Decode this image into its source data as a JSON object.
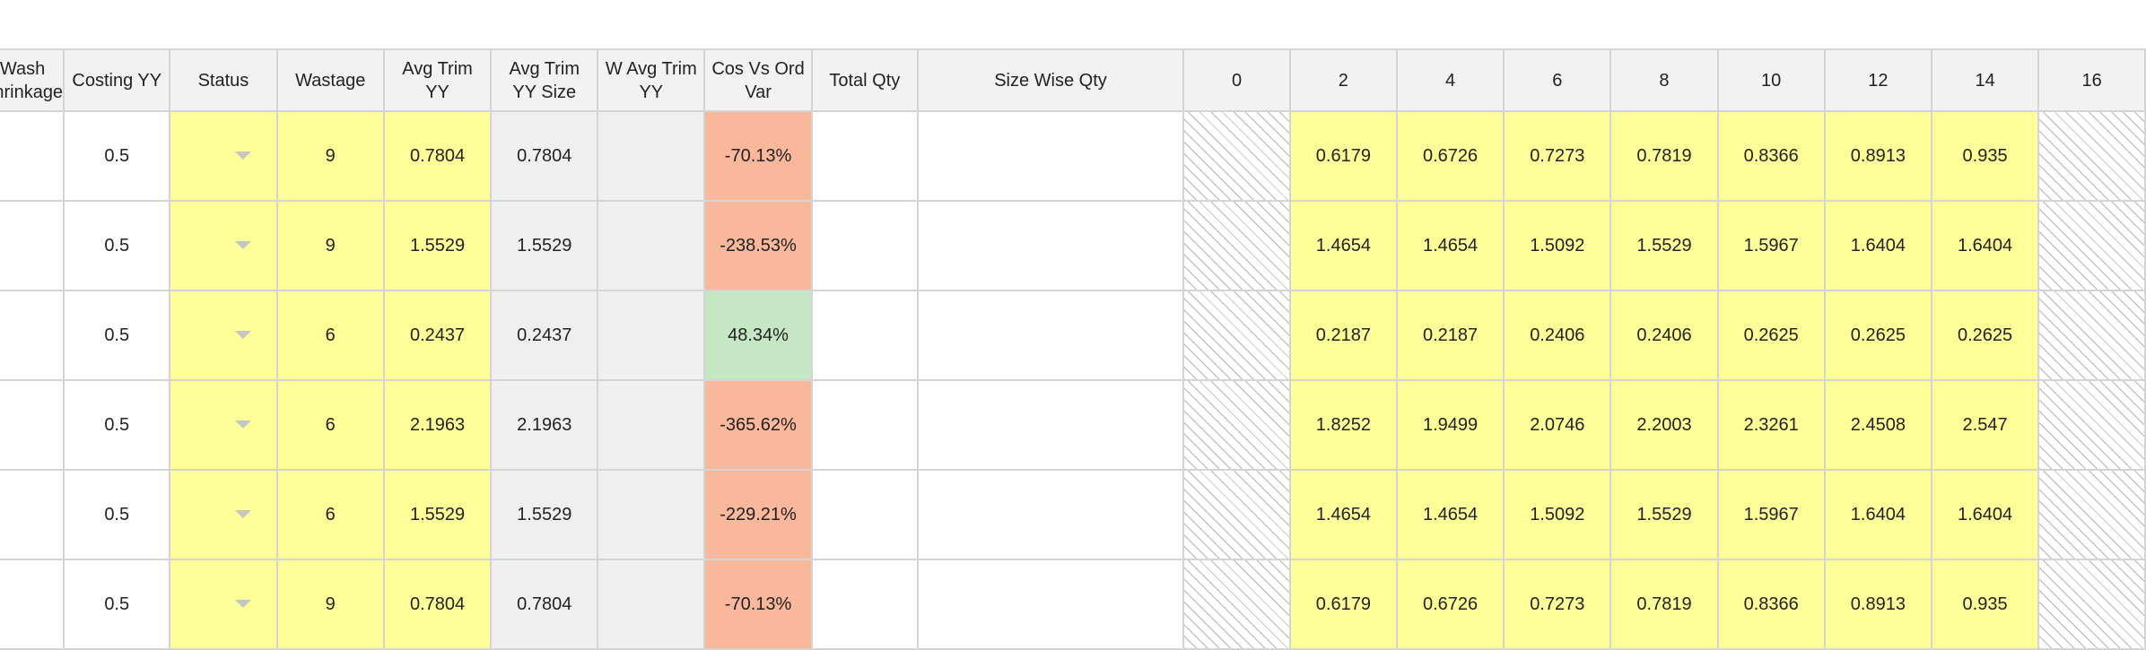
{
  "columns": [
    {
      "key": "wash_shrinkage",
      "line1": "Wash",
      "line2": "Shrinkage"
    },
    {
      "key": "costing_yy",
      "line1": "Costing YY",
      "line2": ""
    },
    {
      "key": "status",
      "line1": "Status",
      "line2": ""
    },
    {
      "key": "wastage",
      "line1": "Wastage",
      "line2": ""
    },
    {
      "key": "avg_trim_yy",
      "line1": "Avg Trim",
      "line2": "YY"
    },
    {
      "key": "avg_trim_yy_size",
      "line1": "Avg Trim",
      "line2": "YY Size"
    },
    {
      "key": "w_avg_trim_yy",
      "line1": "W Avg Trim",
      "line2": "YY"
    },
    {
      "key": "cos_vs_ord_var",
      "line1": "Cos Vs Ord",
      "line2": "Var"
    },
    {
      "key": "total_qty",
      "line1": "Total Qty",
      "line2": ""
    },
    {
      "key": "size_wise_qty",
      "line1": "Size Wise Qty",
      "line2": ""
    },
    {
      "key": "s0",
      "line1": "0",
      "line2": ""
    },
    {
      "key": "s2",
      "line1": "2",
      "line2": ""
    },
    {
      "key": "s4",
      "line1": "4",
      "line2": ""
    },
    {
      "key": "s6",
      "line1": "6",
      "line2": ""
    },
    {
      "key": "s8",
      "line1": "8",
      "line2": ""
    },
    {
      "key": "s10",
      "line1": "10",
      "line2": ""
    },
    {
      "key": "s12",
      "line1": "12",
      "line2": ""
    },
    {
      "key": "s14",
      "line1": "14",
      "line2": ""
    },
    {
      "key": "s16",
      "line1": "16",
      "line2": ""
    }
  ],
  "status_caret_icon": "chevron-down-icon",
  "colors": {
    "editable": "#ffff99",
    "readonly": "#efefef",
    "negative_variance": "#f9b79c",
    "positive_variance": "#c6e7c3",
    "header": "#f2f2f2",
    "border": "#d4d4d4"
  },
  "rows": [
    {
      "costing_yy": "0.5",
      "wastage": "9",
      "avg_trim_yy": "0.7804",
      "avg_trim_yy_size": "0.7804",
      "cos_vs_ord_var": "-70.13%",
      "var_type": "negative",
      "sizes": {
        "s2": "0.6179",
        "s4": "0.6726",
        "s6": "0.7273",
        "s8": "0.7819",
        "s10": "0.8366",
        "s12": "0.8913",
        "s14": "0.935"
      }
    },
    {
      "costing_yy": "0.5",
      "wastage": "9",
      "avg_trim_yy": "1.5529",
      "avg_trim_yy_size": "1.5529",
      "cos_vs_ord_var": "-238.53%",
      "var_type": "negative",
      "sizes": {
        "s2": "1.4654",
        "s4": "1.4654",
        "s6": "1.5092",
        "s8": "1.5529",
        "s10": "1.5967",
        "s12": "1.6404",
        "s14": "1.6404"
      }
    },
    {
      "costing_yy": "0.5",
      "wastage": "6",
      "avg_trim_yy": "0.2437",
      "avg_trim_yy_size": "0.2437",
      "cos_vs_ord_var": "48.34%",
      "var_type": "positive",
      "sizes": {
        "s2": "0.2187",
        "s4": "0.2187",
        "s6": "0.2406",
        "s8": "0.2406",
        "s10": "0.2625",
        "s12": "0.2625",
        "s14": "0.2625"
      }
    },
    {
      "costing_yy": "0.5",
      "wastage": "6",
      "avg_trim_yy": "2.1963",
      "avg_trim_yy_size": "2.1963",
      "cos_vs_ord_var": "-365.62%",
      "var_type": "negative",
      "sizes": {
        "s2": "1.8252",
        "s4": "1.9499",
        "s6": "2.0746",
        "s8": "2.2003",
        "s10": "2.3261",
        "s12": "2.4508",
        "s14": "2.547"
      }
    },
    {
      "costing_yy": "0.5",
      "wastage": "6",
      "avg_trim_yy": "1.5529",
      "avg_trim_yy_size": "1.5529",
      "cos_vs_ord_var": "-229.21%",
      "var_type": "negative",
      "sizes": {
        "s2": "1.4654",
        "s4": "1.4654",
        "s6": "1.5092",
        "s8": "1.5529",
        "s10": "1.5967",
        "s12": "1.6404",
        "s14": "1.6404"
      }
    },
    {
      "costing_yy": "0.5",
      "wastage": "9",
      "avg_trim_yy": "0.7804",
      "avg_trim_yy_size": "0.7804",
      "cos_vs_ord_var": "-70.13%",
      "var_type": "negative",
      "sizes": {
        "s2": "0.6179",
        "s4": "0.6726",
        "s6": "0.7273",
        "s8": "0.7819",
        "s10": "0.8366",
        "s12": "0.8913",
        "s14": "0.935"
      }
    }
  ]
}
